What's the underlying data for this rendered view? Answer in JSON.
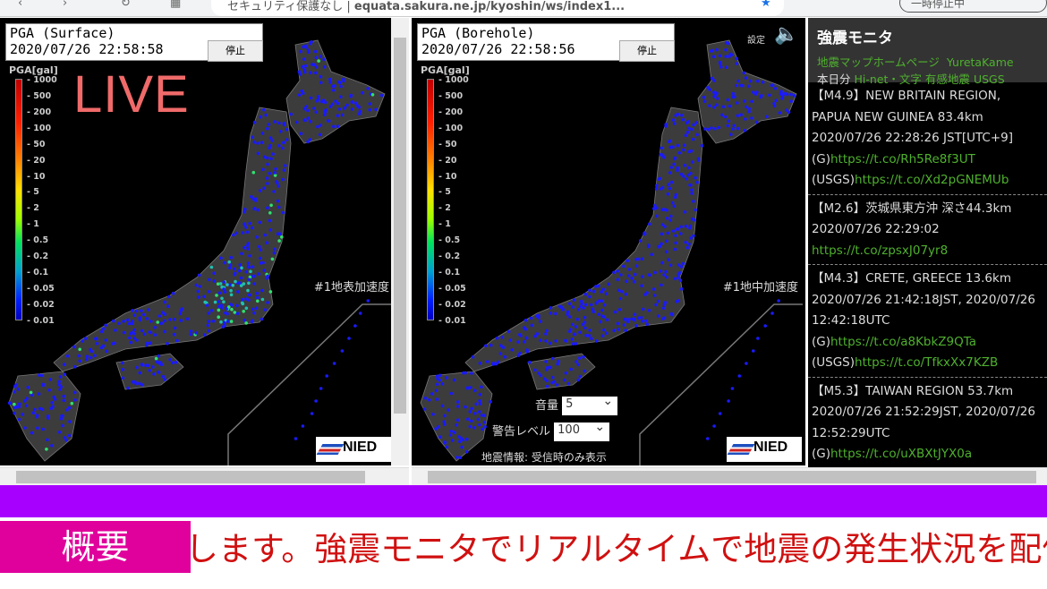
{
  "browser": {
    "address_prefix": "セキュリティ保護なし",
    "url": "equata.sakura.ne.jp/kyoshin/ws/index1...",
    "profile": "一時停止中"
  },
  "surface": {
    "title": "PGA (Surface)",
    "time": "2020/07/26 22:58:58",
    "stop_label": "停止",
    "legend_title": "PGA[gal]",
    "overlay": "LIVE",
    "map_label": "#1地表加速度",
    "logo": "NIED"
  },
  "borehole": {
    "title": "PGA (Borehole)",
    "time": "2020/07/26 22:58:56",
    "stop_label": "停止",
    "legend_title": "PGA[gal]",
    "map_label": "#1地中加速度",
    "logo": "NIED",
    "settings_label": "設定",
    "volume_label": "音量",
    "volume_value": "5",
    "warn_label": "警告レベル",
    "warn_value": "100",
    "info_text": "地震情報: 受信時のみ表示"
  },
  "legend_ticks": [
    "1000",
    "500",
    "200",
    "100",
    "50",
    "20",
    "10",
    "5",
    "2",
    "1",
    "0.5",
    "0.2",
    "0.1",
    "0.05",
    "0.02",
    "0.01"
  ],
  "sidebar": {
    "title": "強震モニタ",
    "link1": "地震マップホームページ",
    "link2": "YuretaKame",
    "today": "本日分",
    "link3": "Hi-net・文字",
    "link4": "有感地震",
    "link5": "USGS",
    "events": [
      {
        "l1": "【M4.9】NEW BRITAIN REGION,",
        "l2": "PAPUA NEW GUINEA 83.4km",
        "l3": "2020/07/26 22:28:26 JST[UTC+9]",
        "g": "(G)",
        "gurl": "https://t.co/Rh5Re8f3UT",
        "u": "(USGS)",
        "uurl": "https://t.co/Xd2pGNEMUb"
      },
      {
        "l1": "【M2.6】茨城県東方沖 深さ44.3km",
        "l2": "2020/07/26 22:29:02",
        "url": "https://t.co/zpsxJ07yr8"
      },
      {
        "l1": "【M4.3】CRETE, GREECE 13.6km",
        "l2": "2020/07/26 21:42:18JST, 2020/07/26",
        "l3": "12:42:18UTC",
        "g": "(G)",
        "gurl": "https://t.co/a8KbkZ9QTa",
        "u": "(USGS)",
        "uurl": "https://t.co/TfkxXx7KZB"
      },
      {
        "l1": "【M5.3】TAIWAN REGION 53.7km",
        "l2": "2020/07/26 21:52:29JST, 2020/07/26",
        "l3": "12:52:29UTC",
        "g": "(G)",
        "gurl": "https://t.co/uXBXtJYX0a"
      }
    ]
  },
  "ticker": {
    "label": "概要",
    "text": "信します。強震モニタでリアルタイムで地震の発生状況を配信します。"
  },
  "colors": {
    "purple_band": "#a800ff",
    "ticker_label_bg": "#e0009c",
    "ticker_text": "#d01010",
    "link_green": "#4fb12e"
  }
}
